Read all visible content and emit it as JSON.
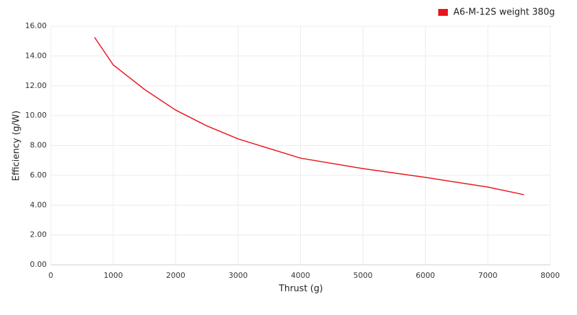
{
  "chart_data": {
    "type": "line",
    "x_label": "Thrust (g)",
    "y_label": "Efficiency (g/W)",
    "x": [
      700,
      1000,
      1500,
      2000,
      2500,
      3000,
      4000,
      5000,
      6000,
      7000,
      7580
    ],
    "series": [
      {
        "name": "A6-M-12S weight 380g",
        "color": "#e8141c",
        "values": [
          15.25,
          13.4,
          11.76,
          10.37,
          9.31,
          8.44,
          7.15,
          6.45,
          5.86,
          5.21,
          4.7
        ]
      }
    ],
    "xlim": [
      0,
      8000
    ],
    "xticks": [
      0,
      1000,
      2000,
      3000,
      4000,
      5000,
      6000,
      7000,
      8000
    ],
    "ylim": [
      0,
      16
    ],
    "yticks": [
      {
        "value": 0,
        "label": "0.00"
      },
      {
        "value": 2,
        "label": "2.00"
      },
      {
        "value": 4,
        "label": "4.00"
      },
      {
        "value": 6,
        "label": "6.00"
      },
      {
        "value": 8,
        "label": "8.00"
      },
      {
        "value": 10,
        "label": "10.00"
      },
      {
        "value": 12,
        "label": "12.00"
      },
      {
        "value": 14,
        "label": "14.00"
      },
      {
        "value": 16,
        "label": "16.00"
      }
    ],
    "grid": true,
    "legend": "top-right"
  }
}
